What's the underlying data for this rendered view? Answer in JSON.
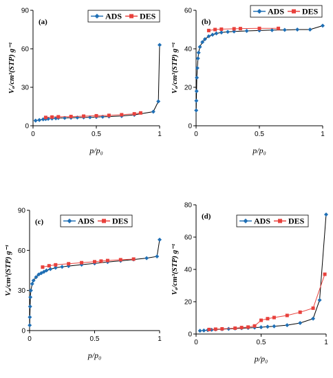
{
  "chart_data": [
    {
      "type": "line",
      "panel_label": "(a)",
      "xlabel": "p/p₀",
      "ylabel": "Vₐ/cm³(STP) g⁻¹",
      "xlim": [
        0,
        1
      ],
      "ylim": [
        0,
        90
      ],
      "xticks": [
        "0",
        "0.5",
        "1"
      ],
      "yticks": [
        "0",
        "30",
        "60",
        "90"
      ],
      "legend_position": "top-right",
      "series": [
        {
          "name": "ADS",
          "color": "#1f6fb5",
          "marker": "diamond",
          "x": [
            0.02,
            0.05,
            0.08,
            0.1,
            0.12,
            0.15,
            0.18,
            0.2,
            0.25,
            0.3,
            0.35,
            0.4,
            0.45,
            0.5,
            0.55,
            0.6,
            0.7,
            0.8,
            0.95,
            0.99,
            1.0
          ],
          "y": [
            4,
            4.5,
            5,
            5.2,
            5.4,
            5.6,
            5.8,
            6,
            6.1,
            6.2,
            6.4,
            6.5,
            6.6,
            6.8,
            7,
            7.2,
            7.6,
            8.5,
            11,
            19,
            63
          ]
        },
        {
          "name": "DES",
          "color": "#e8413c",
          "marker": "square",
          "x": [
            0.1,
            0.15,
            0.2,
            0.3,
            0.4,
            0.5,
            0.6,
            0.7,
            0.8,
            0.85
          ],
          "y": [
            6.5,
            6.8,
            7,
            7.2,
            7.5,
            7.8,
            8.1,
            8.6,
            9.3,
            10
          ]
        }
      ]
    },
    {
      "type": "line",
      "panel_label": "(b)",
      "xlabel": "p/p₀",
      "ylabel": "Vₐ/cm³(STP) g⁻¹",
      "xlim": [
        0,
        1
      ],
      "ylim": [
        0,
        60
      ],
      "xticks": [
        "0",
        "0.5",
        "1"
      ],
      "yticks": [
        "0",
        "20",
        "40",
        "60"
      ],
      "legend_position": "top-right",
      "series": [
        {
          "name": "ADS",
          "color": "#1f6fb5",
          "marker": "diamond",
          "x": [
            0.001,
            0.002,
            0.004,
            0.006,
            0.01,
            0.015,
            0.02,
            0.03,
            0.05,
            0.07,
            0.1,
            0.13,
            0.16,
            0.2,
            0.25,
            0.3,
            0.4,
            0.5,
            0.6,
            0.7,
            0.8,
            0.9,
            1.0
          ],
          "y": [
            8,
            13,
            18,
            25,
            30,
            35,
            38,
            41,
            43.5,
            45,
            46.5,
            47.3,
            48,
            48.5,
            48.8,
            49,
            49.3,
            49.5,
            49.7,
            49.8,
            50,
            50,
            52
          ]
        },
        {
          "name": "DES",
          "color": "#e8413c",
          "marker": "square",
          "x": [
            0.1,
            0.15,
            0.2,
            0.3,
            0.35,
            0.5,
            0.65
          ],
          "y": [
            49.5,
            50,
            50.2,
            50.4,
            50.5,
            50.6,
            50.6
          ]
        }
      ]
    },
    {
      "type": "line",
      "panel_label": "(c)",
      "xlabel": "p/p₀",
      "ylabel": "Vₐ/cm³(STP) g⁻¹",
      "xlim": [
        0,
        1
      ],
      "ylim": [
        0,
        90
      ],
      "xticks": [
        "0",
        "0.5",
        "1"
      ],
      "yticks": [
        "0",
        "30",
        "60",
        "90"
      ],
      "legend_position": "top-right",
      "series": [
        {
          "name": "ADS",
          "color": "#1f6fb5",
          "marker": "diamond",
          "x": [
            0.001,
            0.002,
            0.004,
            0.006,
            0.01,
            0.02,
            0.03,
            0.05,
            0.07,
            0.09,
            0.11,
            0.13,
            0.16,
            0.2,
            0.25,
            0.3,
            0.4,
            0.5,
            0.6,
            0.7,
            0.8,
            0.9,
            0.98,
            1.0
          ],
          "y": [
            4,
            10,
            18,
            25,
            30,
            35,
            37.5,
            40,
            42,
            43,
            44,
            45,
            46,
            47,
            47.7,
            48.3,
            49.3,
            50.3,
            51.3,
            52.2,
            53.2,
            54.2,
            55.5,
            68
          ]
        },
        {
          "name": "DES",
          "color": "#e8413c",
          "marker": "square",
          "x": [
            0.1,
            0.15,
            0.2,
            0.3,
            0.4,
            0.5,
            0.55,
            0.6,
            0.7,
            0.8
          ],
          "y": [
            47.5,
            48.5,
            49.2,
            50,
            50.8,
            51.5,
            52,
            52.4,
            53,
            53.5
          ]
        }
      ]
    },
    {
      "type": "line",
      "panel_label": "(d)",
      "xlabel": "p/p₀",
      "ylabel": "Vₐ/cm³(STP) g⁻¹",
      "xlim": [
        0,
        1
      ],
      "ylim": [
        0,
        80
      ],
      "xticks": [
        "0",
        "0.5",
        "1"
      ],
      "yticks": [
        "0",
        "20",
        "40",
        "60",
        "80"
      ],
      "legend_position": "top-right",
      "series": [
        {
          "name": "ADS",
          "color": "#1f6fb5",
          "marker": "diamond",
          "x": [
            0.03,
            0.06,
            0.09,
            0.12,
            0.15,
            0.2,
            0.25,
            0.3,
            0.35,
            0.4,
            0.45,
            0.5,
            0.55,
            0.6,
            0.7,
            0.8,
            0.9,
            0.95,
            1.0
          ],
          "y": [
            2,
            2.2,
            2.4,
            2.6,
            2.8,
            3,
            3.2,
            3.4,
            3.6,
            3.8,
            4,
            4.2,
            4.5,
            4.8,
            5.5,
            6.8,
            9.5,
            21,
            74
          ]
        },
        {
          "name": "DES",
          "color": "#e8413c",
          "marker": "square",
          "x": [
            0.1,
            0.15,
            0.2,
            0.3,
            0.35,
            0.4,
            0.45,
            0.5,
            0.55,
            0.6,
            0.7,
            0.8,
            0.9,
            0.99
          ],
          "y": [
            2.8,
            3,
            3.2,
            3.6,
            4,
            4.3,
            5,
            8.5,
            9.5,
            10.2,
            11.5,
            13.5,
            16,
            37
          ]
        }
      ]
    }
  ]
}
